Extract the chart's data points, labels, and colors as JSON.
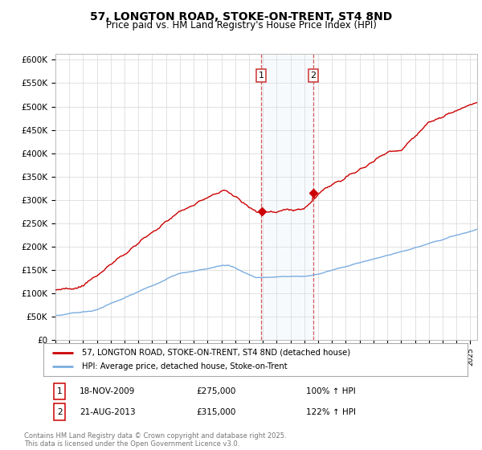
{
  "title": "57, LONGTON ROAD, STOKE-ON-TRENT, ST4 8ND",
  "subtitle": "Price paid vs. HM Land Registry's House Price Index (HPI)",
  "ylim": [
    0,
    612500
  ],
  "yticks": [
    0,
    50000,
    100000,
    150000,
    200000,
    250000,
    300000,
    350000,
    400000,
    450000,
    500000,
    550000,
    600000
  ],
  "ytick_labels": [
    "£0",
    "£50K",
    "£100K",
    "£150K",
    "£200K",
    "£250K",
    "£300K",
    "£350K",
    "£400K",
    "£450K",
    "£500K",
    "£550K",
    "£600K"
  ],
  "xlim_start": 1995.0,
  "xlim_end": 2025.5,
  "transaction1_date": 2009.88,
  "transaction1_price": 275000,
  "transaction1_date_str": "18-NOV-2009",
  "transaction1_pct": "100%",
  "transaction2_date": 2013.64,
  "transaction2_price": 315000,
  "transaction2_date_str": "21-AUG-2013",
  "transaction2_pct": "122%",
  "house_line_color": "#cc0000",
  "hpi_line_color": "#7aade0",
  "background_color": "#ffffff",
  "grid_color": "#dddddd",
  "legend1_label": "57, LONGTON ROAD, STOKE-ON-TRENT, ST4 8ND (detached house)",
  "legend2_label": "HPI: Average price, detached house, Stoke-on-Trent",
  "footer": "Contains HM Land Registry data © Crown copyright and database right 2025.\nThis data is licensed under the Open Government Licence v3.0.",
  "title_fontsize": 10,
  "subtitle_fontsize": 8.5
}
